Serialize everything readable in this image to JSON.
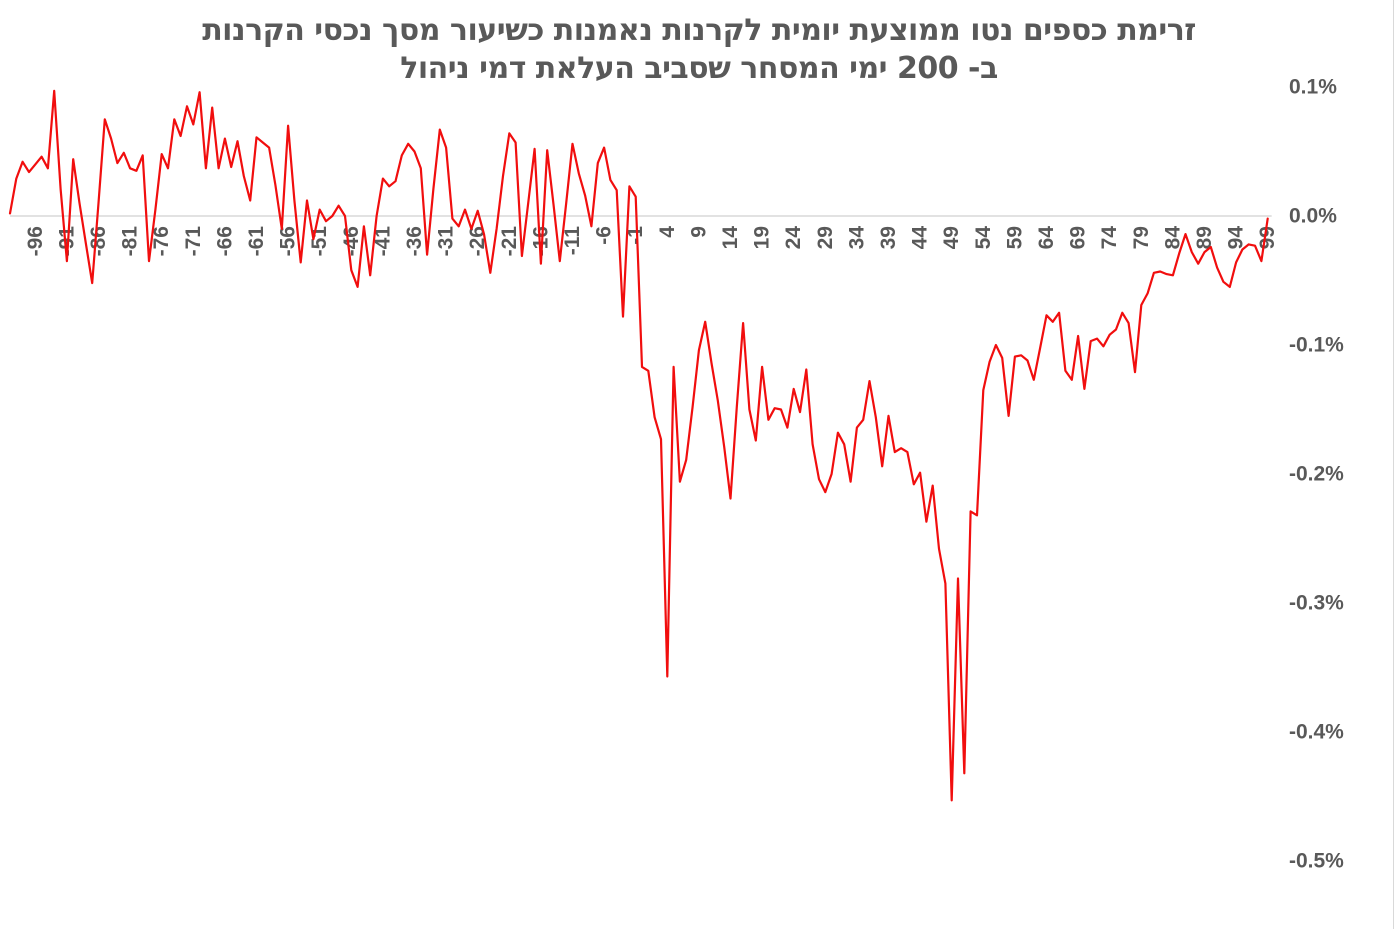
{
  "chart": {
    "title_line1": "זרימת כספים נטו ממוצעת יומית לקרנות נאמנות כשיעור מסך נכסי הקרנות",
    "title_line2": "ב- 200 ימי המסחר שסביב העלאת דמי ניהול",
    "title_color": "#595959",
    "axis_color": "#595959",
    "line_color": "#f10e0e",
    "gridline_color": "#d9d9d9",
    "background": "#ffffff",
    "edge_line_color": "#d9d9d9"
  },
  "chart_data": {
    "type": "line",
    "title": "זרימת כספים נטו ממוצעת יומית לקרנות נאמנות כשיעור מסך נכסי הקרנות ב- 200 ימי המסחר שסביב העלאת דמי ניהול",
    "xlabel": "",
    "ylabel": "",
    "unit": "%",
    "legend": "none",
    "grid": "zero-line-only",
    "ylim": [
      -0.55,
      0.12
    ],
    "x_first": -100,
    "x_last": 99,
    "x": [
      -100,
      -99,
      -98,
      -97,
      -96,
      -95,
      -94,
      -93,
      -92,
      -91,
      -90,
      -89,
      -88,
      -87,
      -86,
      -85,
      -84,
      -83,
      -82,
      -81,
      -80,
      -79,
      -78,
      -77,
      -76,
      -75,
      -74,
      -73,
      -72,
      -71,
      -70,
      -69,
      -68,
      -67,
      -66,
      -65,
      -64,
      -63,
      -62,
      -61,
      -60,
      -59,
      -58,
      -57,
      -56,
      -55,
      -54,
      -53,
      -52,
      -51,
      -50,
      -49,
      -48,
      -47,
      -46,
      -45,
      -44,
      -43,
      -42,
      -41,
      -40,
      -39,
      -38,
      -37,
      -36,
      -35,
      -34,
      -33,
      -32,
      -31,
      -30,
      -29,
      -28,
      -27,
      -26,
      -25,
      -24,
      -23,
      -22,
      -21,
      -20,
      -19,
      -18,
      -17,
      -16,
      -15,
      -14,
      -13,
      -12,
      -11,
      -10,
      -9,
      -8,
      -7,
      -6,
      -5,
      -4,
      -3,
      -2,
      -1,
      0,
      1,
      2,
      3,
      4,
      5,
      6,
      7,
      8,
      9,
      10,
      11,
      12,
      13,
      14,
      15,
      16,
      17,
      18,
      19,
      20,
      21,
      22,
      23,
      24,
      25,
      26,
      27,
      28,
      29,
      30,
      31,
      32,
      33,
      34,
      35,
      36,
      37,
      38,
      39,
      40,
      41,
      42,
      43,
      44,
      45,
      46,
      47,
      48,
      49,
      50,
      51,
      52,
      53,
      54,
      55,
      56,
      57,
      58,
      59,
      60,
      61,
      62,
      63,
      64,
      65,
      66,
      67,
      68,
      69,
      70,
      71,
      72,
      73,
      74,
      75,
      76,
      77,
      78,
      79,
      80,
      81,
      82,
      83,
      84,
      85,
      86,
      87,
      88,
      89,
      90,
      91,
      92,
      93,
      94,
      95,
      96,
      97,
      98,
      99
    ],
    "values": [
      0.002,
      0.029,
      0.042,
      0.034,
      0.04,
      0.046,
      0.037,
      0.097,
      0.021,
      -0.035,
      0.044,
      0.01,
      -0.021,
      -0.052,
      0.01,
      0.075,
      0.06,
      0.041,
      0.049,
      0.037,
      0.035,
      0.047,
      -0.035,
      0.005,
      0.048,
      0.037,
      0.075,
      0.062,
      0.085,
      0.071,
      0.096,
      0.037,
      0.084,
      0.037,
      0.06,
      0.038,
      0.058,
      0.031,
      0.012,
      0.061,
      0.057,
      0.053,
      0.024,
      -0.01,
      0.07,
      0.012,
      -0.036,
      0.012,
      -0.018,
      0.005,
      -0.004,
      0.0,
      0.008,
      0.0,
      -0.042,
      -0.055,
      -0.008,
      -0.046,
      0.0,
      0.029,
      0.023,
      0.027,
      0.047,
      0.056,
      0.05,
      0.037,
      -0.03,
      0.021,
      0.067,
      0.053,
      -0.002,
      -0.008,
      0.005,
      -0.01,
      0.004,
      -0.014,
      -0.044,
      -0.01,
      0.031,
      0.064,
      0.057,
      -0.031,
      0.01,
      0.052,
      -0.037,
      0.051,
      0.009,
      -0.035,
      0.01,
      0.056,
      0.033,
      0.016,
      -0.008,
      0.041,
      0.053,
      0.028,
      0.02,
      -0.078,
      0.023,
      0.015,
      -0.117,
      -0.12,
      -0.156,
      -0.173,
      -0.357,
      -0.117,
      -0.206,
      -0.189,
      -0.148,
      -0.104,
      -0.082,
      -0.114,
      -0.143,
      -0.179,
      -0.219,
      -0.148,
      -0.083,
      -0.15,
      -0.174,
      -0.117,
      -0.158,
      -0.149,
      -0.15,
      -0.164,
      -0.134,
      -0.152,
      -0.119,
      -0.177,
      -0.204,
      -0.214,
      -0.2,
      -0.168,
      -0.177,
      -0.206,
      -0.164,
      -0.158,
      -0.128,
      -0.156,
      -0.194,
      -0.155,
      -0.183,
      -0.18,
      -0.183,
      -0.208,
      -0.199,
      -0.237,
      -0.209,
      -0.258,
      -0.285,
      -0.453,
      -0.281,
      -0.432,
      -0.229,
      -0.232,
      -0.135,
      -0.113,
      -0.1,
      -0.11,
      -0.155,
      -0.109,
      -0.108,
      -0.112,
      -0.127,
      -0.102,
      -0.077,
      -0.082,
      -0.075,
      -0.12,
      -0.127,
      -0.093,
      -0.134,
      -0.097,
      -0.095,
      -0.101,
      -0.092,
      -0.088,
      -0.075,
      -0.083,
      -0.121,
      -0.069,
      -0.06,
      -0.044,
      -0.043,
      -0.045,
      -0.046,
      -0.029,
      -0.014,
      -0.028,
      -0.037,
      -0.028,
      -0.024,
      -0.04,
      -0.051,
      -0.055,
      -0.036,
      -0.026,
      -0.022,
      -0.023,
      -0.035,
      -0.002
    ],
    "x_tick_labels": [
      "-96",
      "-91",
      "-86",
      "-81",
      "-76",
      "-71",
      "-66",
      "-61",
      "-56",
      "-51",
      "-46",
      "-41",
      "-36",
      "-31",
      "-26",
      "-21",
      "-16",
      "-11",
      "-6",
      "-1",
      "4",
      "9",
      "14",
      "19",
      "24",
      "29",
      "34",
      "39",
      "44",
      "49",
      "54",
      "59",
      "64",
      "69",
      "74",
      "79",
      "84",
      "89",
      "94",
      "99"
    ],
    "y_ticks": [
      0.1,
      0.0,
      -0.1,
      -0.2,
      -0.3,
      -0.4,
      -0.5
    ],
    "y_tick_labels": [
      "0.1%",
      "0.0%",
      "-0.1%",
      "-0.2%",
      "-0.3%",
      "-0.4%",
      "-0.5%"
    ]
  }
}
